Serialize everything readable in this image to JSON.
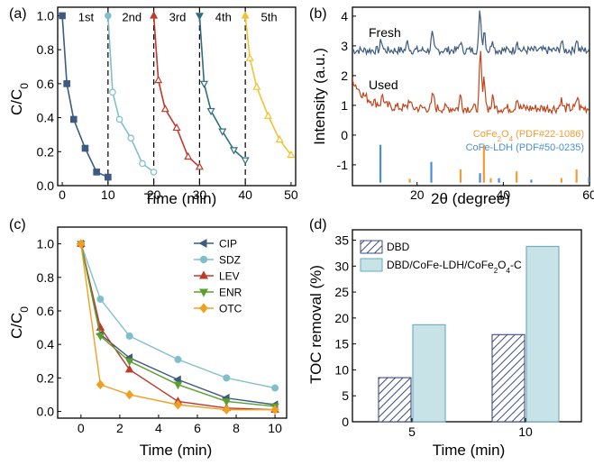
{
  "colors": {
    "c1": "#3d5a80",
    "c2": "#7fbfcc",
    "c3": "#c0392b",
    "c4": "#2e6e7e",
    "c5": "#f2c230",
    "fresh": "#3d5a80",
    "used": "#c0441b",
    "cofe2o4": "#f39c34",
    "ldh": "#4a8fd6",
    "dbd_fill": "#ffffff",
    "dbd_hatch": "#3d4a80",
    "comp_fill": "#c8e3e8",
    "comp_stroke": "#6aaab8"
  },
  "chart_data": [
    {
      "panel": "(a)",
      "type": "line",
      "xlabel": "Time (min)",
      "ylabel": "C/C0",
      "ylabel_main": "C/C",
      "ylabel_sub": "0",
      "xlim": [
        -1,
        51
      ],
      "ylim": [
        0,
        1.05
      ],
      "xticks": [
        "0",
        "10",
        "20",
        "30",
        "40",
        "50"
      ],
      "yticks": [
        "0.0",
        "0.2",
        "0.4",
        "0.6",
        "0.8",
        "1.0"
      ],
      "separators": [
        10,
        20,
        30,
        40
      ],
      "series": [
        {
          "name": "1st",
          "x": [
            0,
            1,
            2.5,
            5,
            7.5,
            10
          ],
          "y": [
            1.0,
            0.6,
            0.39,
            0.22,
            0.08,
            0.05
          ]
        },
        {
          "name": "2nd",
          "x": [
            10,
            11,
            12.5,
            15,
            17.5,
            20
          ],
          "y": [
            1.0,
            0.55,
            0.39,
            0.28,
            0.13,
            0.08
          ]
        },
        {
          "name": "3rd",
          "x": [
            20,
            21,
            22.5,
            25,
            27.5,
            30
          ],
          "y": [
            1.0,
            0.62,
            0.45,
            0.34,
            0.17,
            0.11
          ]
        },
        {
          "name": "4th",
          "x": [
            30,
            31,
            32.5,
            35,
            37.5,
            40
          ],
          "y": [
            1.0,
            0.6,
            0.44,
            0.32,
            0.21,
            0.15
          ]
        },
        {
          "name": "5th",
          "x": [
            40,
            41,
            42.5,
            45,
            47.5,
            50
          ],
          "y": [
            1.0,
            0.75,
            0.58,
            0.41,
            0.27,
            0.18
          ]
        }
      ]
    },
    {
      "panel": "(b)",
      "type": "line",
      "xlabel": "2θ (degree)",
      "ylabel": "Intensity (a.u.)",
      "xlim": [
        5,
        60
      ],
      "ylim": [
        -1.7,
        4.3
      ],
      "xticks": [
        "20",
        "40",
        "60"
      ],
      "yticks": [
        "-1",
        "0",
        "1",
        "2",
        "3",
        "4"
      ],
      "series": [
        {
          "name": "Fresh",
          "base": 2.85,
          "noise": 0.14,
          "peaks": [
            [
              11.7,
              0.35
            ],
            [
              17.8,
              0.3
            ],
            [
              23.5,
              0.55
            ],
            [
              30.0,
              0.3
            ],
            [
              34.6,
              1.35
            ],
            [
              35.6,
              0.7
            ],
            [
              37.5,
              0.4
            ],
            [
              43.2,
              0.35
            ],
            [
              53.5,
              0.3
            ],
            [
              57.0,
              0.4
            ],
            [
              62.6,
              0.3
            ]
          ]
        },
        {
          "name": "Used",
          "base": 0.9,
          "noise": 0.16,
          "decay": 1.0,
          "peaks": [
            [
              12.0,
              0.35
            ],
            [
              18.2,
              0.3
            ],
            [
              23.7,
              0.5
            ],
            [
              30.1,
              0.45
            ],
            [
              34.7,
              1.85
            ],
            [
              35.6,
              1.0
            ],
            [
              37.6,
              0.35
            ],
            [
              43.2,
              0.4
            ],
            [
              53.4,
              0.3
            ],
            [
              57.2,
              0.4
            ]
          ]
        }
      ],
      "references": [
        {
          "name": "CoFe2O4",
          "label_main": "CoFe",
          "label_sub": "2",
          "label_mid": "O",
          "label_sub2": "4",
          "label_tail": " (PDF#22-1086)",
          "lines": [
            [
              18.3,
              0.1
            ],
            [
              30.1,
              0.35
            ],
            [
              35.5,
              1.0
            ],
            [
              37.1,
              0.12
            ],
            [
              43.1,
              0.3
            ],
            [
              53.5,
              0.12
            ],
            [
              57.0,
              0.35
            ],
            [
              62.6,
              0.45
            ]
          ]
        },
        {
          "name": "CoFe-LDH",
          "label": "CoFe-LDH (PDF#50-0235)",
          "lines": [
            [
              11.5,
              1.0
            ],
            [
              23.3,
              0.55
            ],
            [
              34.6,
              0.25
            ],
            [
              39.0,
              0.12
            ],
            [
              46.5,
              0.08
            ],
            [
              59.9,
              0.15
            ]
          ]
        }
      ],
      "annotations": [
        "Fresh",
        "Used"
      ]
    },
    {
      "panel": "(c)",
      "type": "line",
      "xlabel": "Time (min)",
      "ylabel": "C/C0",
      "ylabel_main": "C/C",
      "ylabel_sub": "0",
      "xlim": [
        -1.2,
        10.6
      ],
      "ylim": [
        -0.04,
        1.1
      ],
      "xticks": [
        "0",
        "2",
        "4",
        "6",
        "8",
        "10"
      ],
      "yticks": [
        "0.0",
        "0.2",
        "0.4",
        "0.6",
        "0.8",
        "1.0"
      ],
      "x": [
        0,
        1,
        2.5,
        5,
        7.5,
        10
      ],
      "series": [
        {
          "name": "CIP",
          "marker": "triangle-left",
          "color": "#3d5a80",
          "values": [
            1.0,
            0.46,
            0.32,
            0.19,
            0.08,
            0.04
          ]
        },
        {
          "name": "SDZ",
          "marker": "circle",
          "color": "#7fbfcc",
          "values": [
            1.0,
            0.67,
            0.45,
            0.31,
            0.2,
            0.14
          ]
        },
        {
          "name": "LEV",
          "marker": "triangle-up",
          "color": "#c0392b",
          "values": [
            1.0,
            0.5,
            0.25,
            0.06,
            0.02,
            0.01
          ]
        },
        {
          "name": "ENR",
          "marker": "triangle-down",
          "color": "#5aa02c",
          "values": [
            1.0,
            0.45,
            0.3,
            0.16,
            0.06,
            0.03
          ]
        },
        {
          "name": "OTC",
          "marker": "diamond",
          "color": "#f0a020",
          "values": [
            1.0,
            0.16,
            0.1,
            0.04,
            0.01,
            0.01
          ]
        }
      ]
    },
    {
      "panel": "(d)",
      "type": "bar",
      "xlabel": "Time (min)",
      "ylabel": "TOC removal (%)",
      "categories": [
        "5",
        "10"
      ],
      "ylim": [
        0,
        37
      ],
      "yticks": [
        "0",
        "5",
        "10",
        "15",
        "20",
        "25",
        "30",
        "35"
      ],
      "series": [
        {
          "name": "DBD",
          "values": [
            8.5,
            16.8
          ]
        },
        {
          "name": "DBD/CoFe-LDH/CoFe2O4-C",
          "label_main": "DBD/CoFe-LDH/CoFe",
          "label_sub": "2",
          "label_mid": "O",
          "label_sub2": "4",
          "label_tail": "-C",
          "values": [
            18.7,
            33.8
          ]
        }
      ]
    }
  ]
}
